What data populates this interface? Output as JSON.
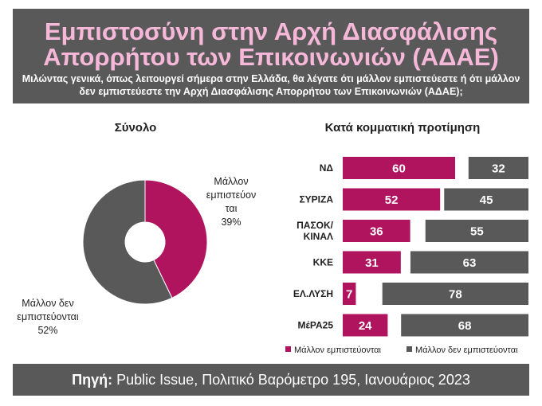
{
  "header": {
    "title_line1": "Εμπιστοσύνη στην Αρχή Διασφάλισης",
    "title_line2": "Απορρήτου των Επικοινωνιών (ΑΔΑΕ)",
    "subtitle": "Μιλώντας γενικά, όπως λειτουργεί σήμερα στην Ελλάδα, θα λέγατε ότι μάλλον εμπιστεύεστε ή ότι μάλλον δεν εμπιστεύεστε την Αρχή Διασφάλισης Απορρήτου των Επικοινωνιών (ΑΔΑΕ);"
  },
  "footer": {
    "source_label": "Πηγή:",
    "source_text": "Public Issue, Πολιτικό Βαρόμετρο 195, Ιανουάριος 2023"
  },
  "colors": {
    "trust": "#b0145e",
    "distrust": "#595959",
    "header_bg": "#595959",
    "title": "#f6b8d9"
  },
  "chart_data": [
    {
      "type": "pie",
      "title": "Σύνολο",
      "donut": true,
      "slices": [
        {
          "name": "Μάλλον εμπιστεύονται",
          "label_lines": [
            "Μάλλον",
            "εμπιστεύον",
            "ται"
          ],
          "value": 39,
          "value_label": "39%",
          "color": "#b0145e"
        },
        {
          "name": "Μάλλον δεν εμπιστεύονται",
          "label_lines": [
            "Μάλλον δεν",
            "εμπιστεύονται"
          ],
          "value": 52,
          "value_label": "52%",
          "color": "#595959"
        }
      ]
    },
    {
      "type": "bar",
      "orientation": "horizontal",
      "title": "Κατά κομματική προτίμηση",
      "categories": [
        "ΝΔ",
        "ΣΥΡΙΖΑ",
        "ΠΑΣΟΚ/ ΚΙΝΑΛ",
        "ΚΚΕ",
        "ΕΛ.ΛΥΣΗ",
        "ΜέΡΑ25"
      ],
      "series": [
        {
          "name": "Μάλλον εμπιστεύονται",
          "values": [
            60,
            52,
            36,
            31,
            7,
            24
          ],
          "color": "#b0145e"
        },
        {
          "name": "Μάλλον δεν εμπιστεύονται",
          "values": [
            32,
            45,
            55,
            63,
            78,
            68
          ],
          "color": "#595959"
        }
      ],
      "legend": "bottom"
    }
  ]
}
